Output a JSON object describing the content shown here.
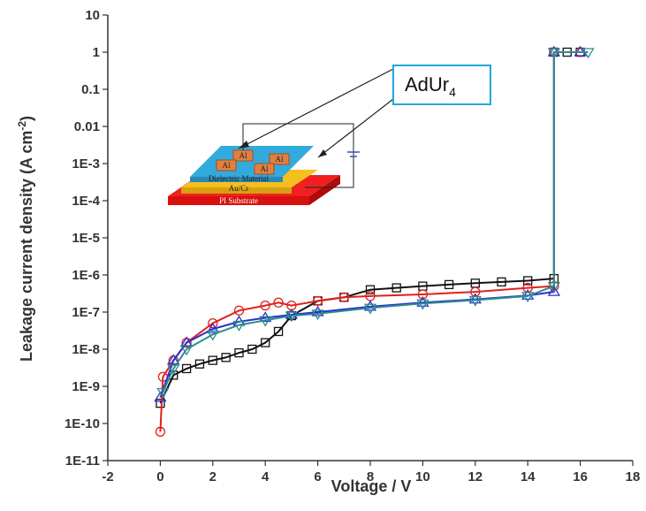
{
  "chart_data": {
    "type": "line",
    "x_label": "Voltage / V",
    "y_label": "Leakage current density (A cm",
    "y_label_sup": "-2",
    "y_label_end": ")",
    "log_y": true,
    "xlim": [
      -2,
      18
    ],
    "xticks": [
      -2,
      0,
      2,
      4,
      6,
      8,
      10,
      12,
      14,
      16,
      18
    ],
    "ylim": [
      1e-11,
      10
    ],
    "yticks": [
      10,
      1,
      0.1,
      0.01,
      {
        "value": 0.001,
        "label": "1E-3"
      },
      {
        "value": 0.0001,
        "label": "1E-4"
      },
      {
        "value": 1e-05,
        "label": "1E-5"
      },
      {
        "value": 1e-06,
        "label": "1E-6"
      },
      {
        "value": 1e-07,
        "label": "1E-7"
      },
      {
        "value": 1e-08,
        "label": "1E-8"
      },
      {
        "value": 1e-09,
        "label": "1E-9"
      },
      {
        "value": 1e-10,
        "label": "1E-10"
      },
      {
        "value": 1e-11,
        "label": "1E-11"
      }
    ],
    "series": [
      {
        "color": "#111111",
        "marker": "square",
        "x": [
          0,
          0.5,
          1,
          1.5,
          2,
          2.5,
          3,
          3.5,
          4,
          4.5,
          5,
          6,
          7,
          8,
          9,
          10,
          11,
          12,
          13,
          14,
          15,
          15,
          15.5,
          16
        ],
        "values": [
          3.5e-10,
          2e-09,
          3e-09,
          4e-09,
          5e-09,
          6e-09,
          8e-09,
          1e-08,
          1.5e-08,
          3e-08,
          8e-08,
          2e-07,
          2.5e-07,
          4e-07,
          4.5e-07,
          5e-07,
          5.5e-07,
          6e-07,
          6.5e-07,
          7e-07,
          8e-07,
          1,
          1,
          1
        ]
      },
      {
        "color": "#e0201c",
        "marker": "circle",
        "x": [
          0,
          0.1,
          0.5,
          1,
          2,
          3,
          4,
          4.5,
          5,
          6,
          7,
          8,
          10,
          12,
          14,
          15,
          15,
          16
        ],
        "values": [
          6e-11,
          1.8e-09,
          5e-09,
          1.5e-08,
          5e-08,
          1.1e-07,
          1.5e-07,
          1.8e-07,
          1.5e-07,
          2e-07,
          2.5e-07,
          2.7e-07,
          3e-07,
          3.5e-07,
          4.5e-07,
          5e-07,
          1,
          1
        ]
      },
      {
        "color": "#2a2fd0",
        "marker": "triangle-up",
        "x": [
          0,
          0.5,
          1,
          2,
          3,
          4,
          5,
          6,
          8,
          10,
          12,
          14,
          15,
          15,
          16
        ],
        "values": [
          5e-10,
          5e-09,
          1.5e-08,
          3.5e-08,
          5.5e-08,
          7e-08,
          8.5e-08,
          1e-07,
          1.4e-07,
          1.8e-07,
          2.2e-07,
          2.8e-07,
          3.5e-07,
          1,
          1
        ]
      },
      {
        "color": "#2e8c8c",
        "marker": "triangle-down",
        "x": [
          0.1,
          0.5,
          1,
          2,
          3,
          4,
          5,
          6,
          8,
          10,
          12,
          14,
          15,
          15,
          16.3
        ],
        "values": [
          7e-10,
          3e-09,
          1e-08,
          2.5e-08,
          4.5e-08,
          6e-08,
          8e-08,
          9e-08,
          1.3e-07,
          1.7e-07,
          2.1e-07,
          2.7e-07,
          5e-07,
          1,
          1
        ]
      }
    ],
    "inset": {
      "callout": "AdUr",
      "callout_sub": "4",
      "electrode_labels": [
        "Al",
        "Al",
        "Al",
        "Al"
      ],
      "layers": [
        "Dielectric Material",
        "Au/Cr",
        "PI Substrate"
      ]
    }
  }
}
